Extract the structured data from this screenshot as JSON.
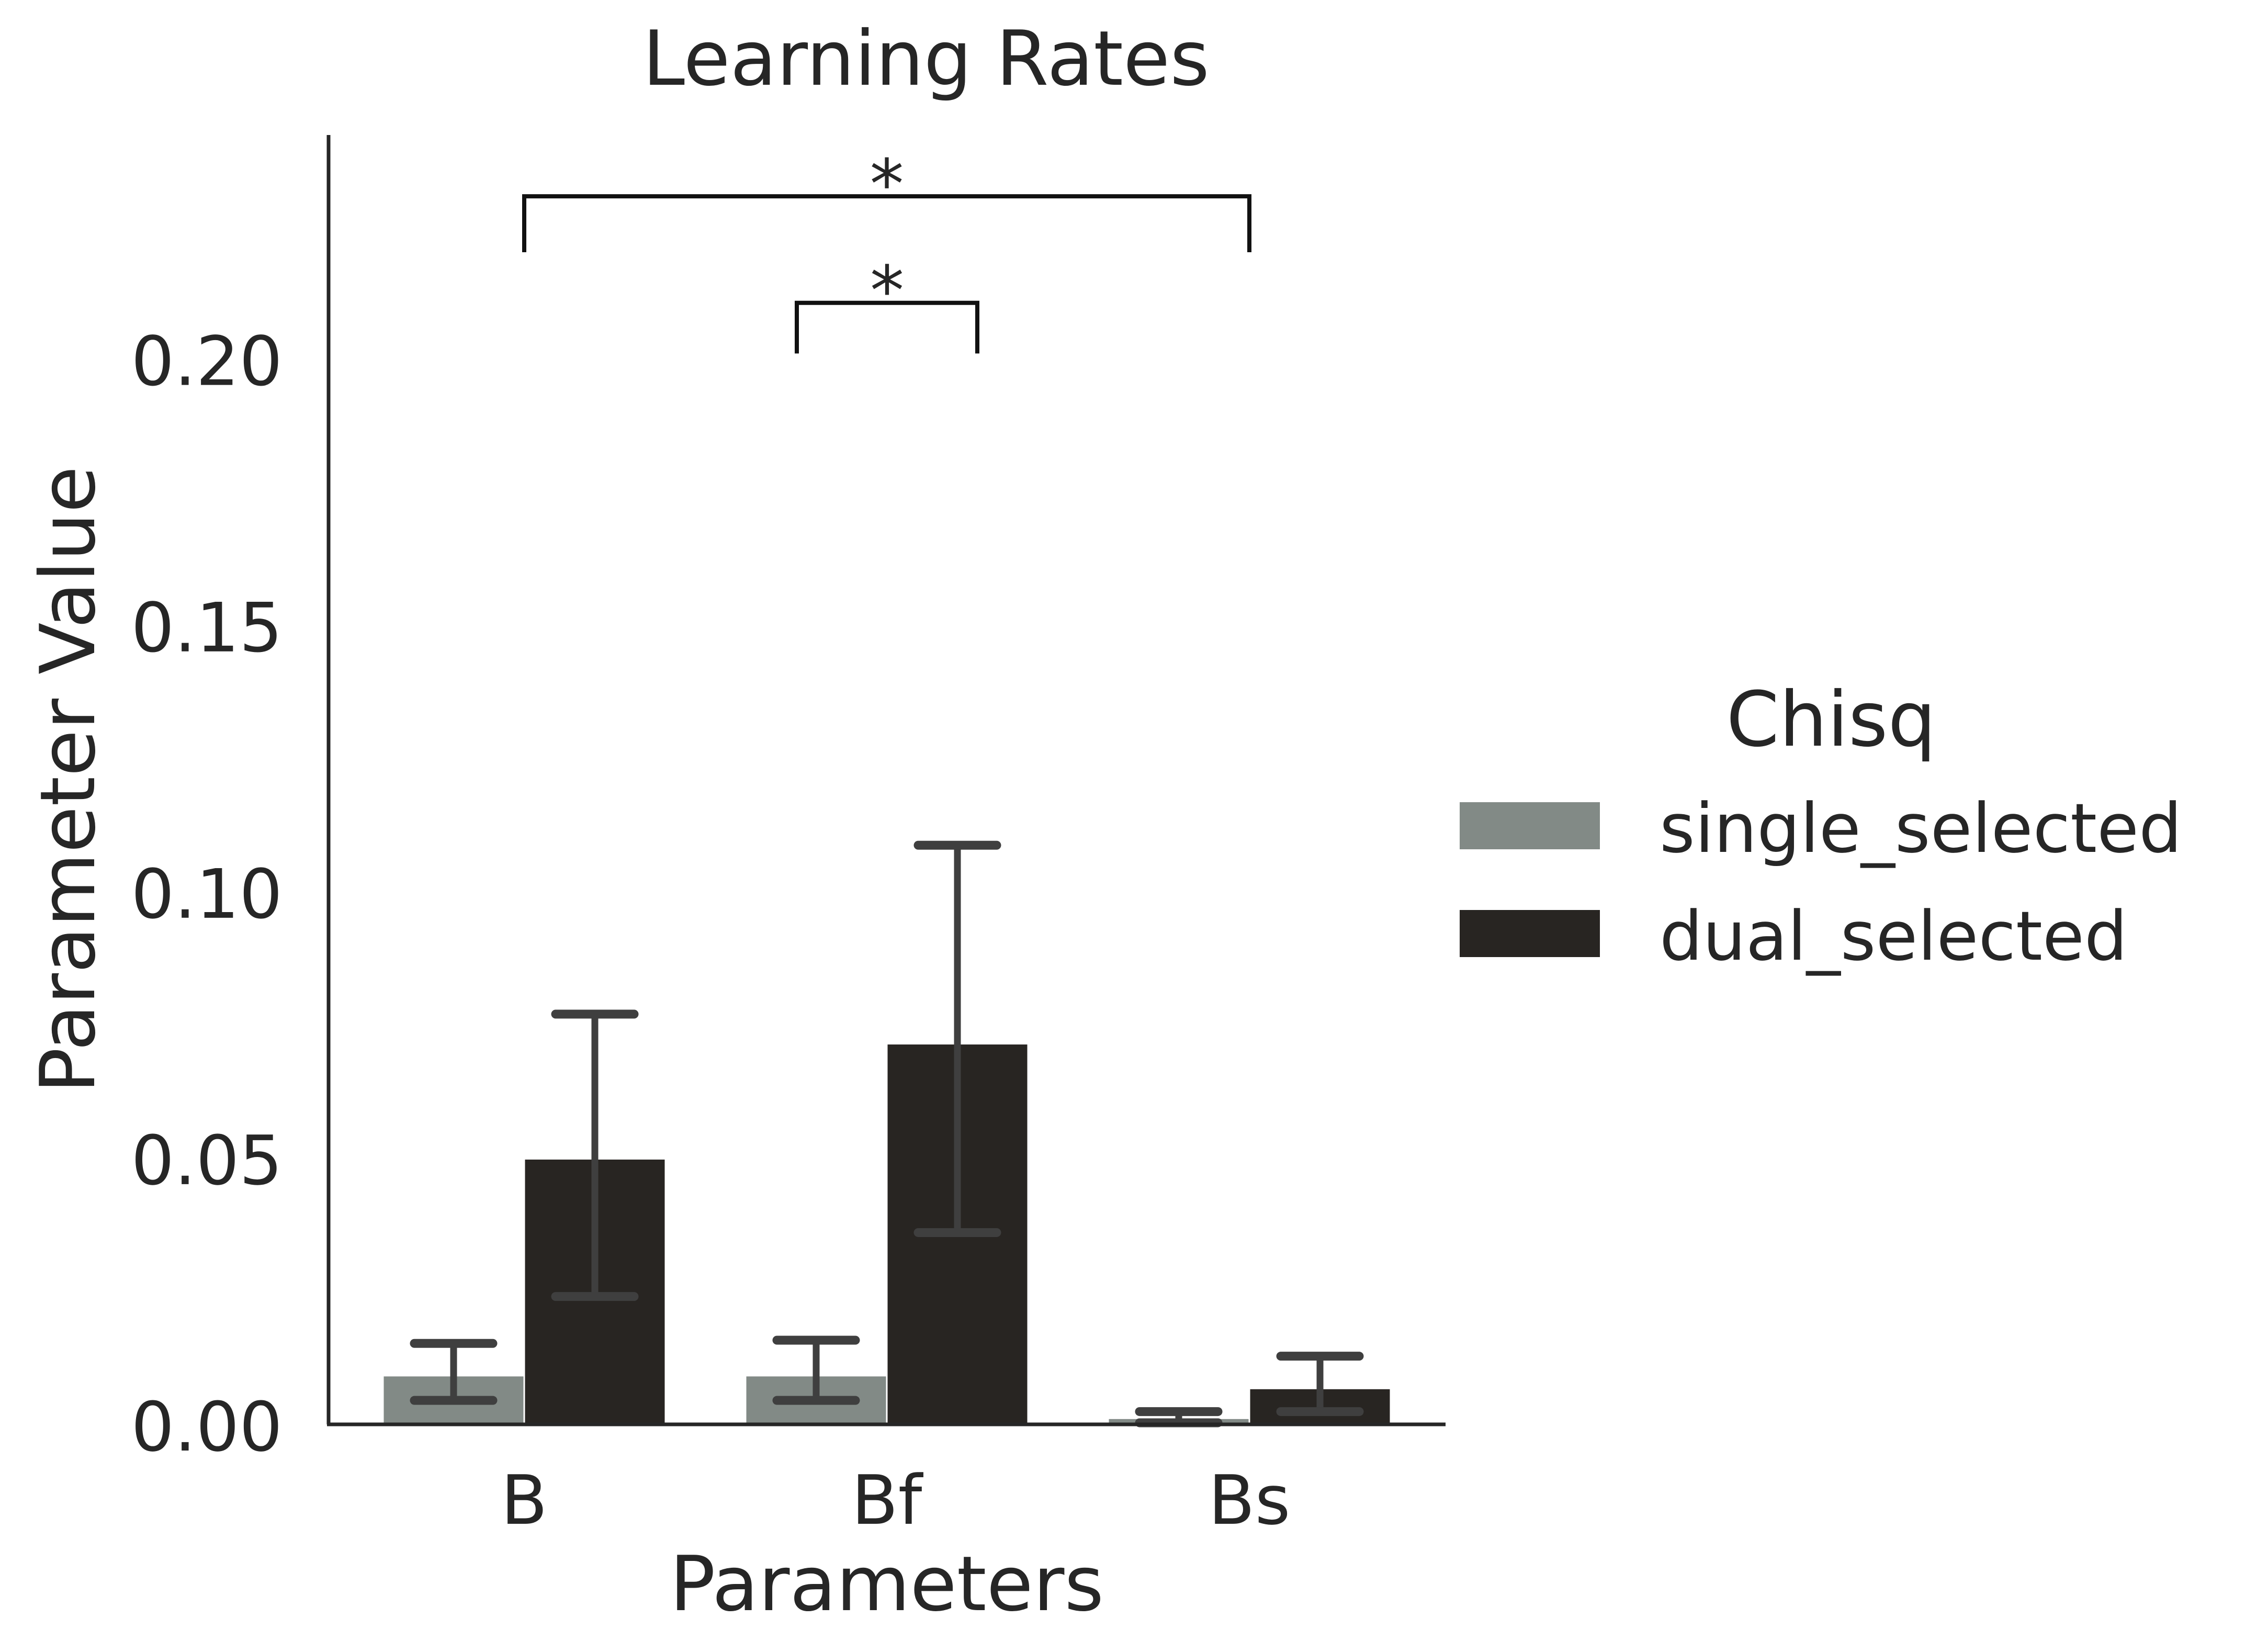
{
  "chart_data": {
    "type": "bar",
    "title": "Learning Rates",
    "xlabel": "Parameters",
    "ylabel": "Parameter Value",
    "categories": [
      "B",
      "Bf",
      "Bs"
    ],
    "ylim": [
      0,
      0.242
    ],
    "yticks": [
      "0.00",
      "0.05",
      "0.10",
      "0.15",
      "0.20"
    ],
    "grid": false,
    "legend": {
      "title": "Chisq",
      "position": "right"
    },
    "series": [
      {
        "name": "single_selected",
        "color": "#828a86",
        "values": [
          0.009,
          0.009,
          0.001
        ],
        "err_low": [
          0.0045,
          0.0045,
          0.0003
        ],
        "err_high": [
          0.0152,
          0.0158,
          0.0024
        ]
      },
      {
        "name": "dual_selected",
        "color": "#282522",
        "values": [
          0.0497,
          0.0713,
          0.0066
        ],
        "err_low": [
          0.024,
          0.036,
          0.0024
        ],
        "err_high": [
          0.077,
          0.1087,
          0.0128
        ]
      }
    ],
    "annotations": [
      {
        "label": "*",
        "from": "B",
        "to": "Bs",
        "y": 0.2305,
        "drop": 0.0105
      },
      {
        "label": "*",
        "from": "Bf",
        "to": "Bf",
        "y": 0.2105,
        "drop": 0.0095
      }
    ]
  }
}
